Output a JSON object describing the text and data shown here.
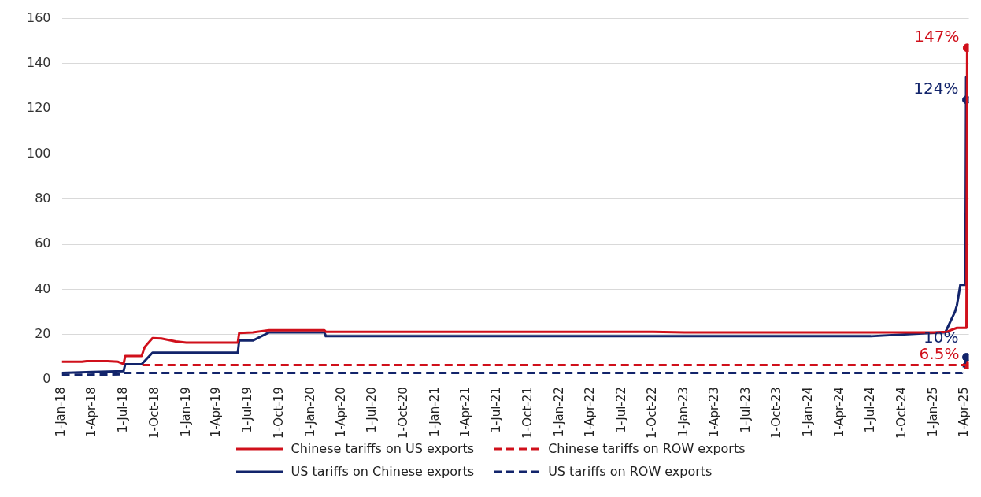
{
  "chart_data": {
    "type": "line",
    "legend": "bottom",
    "grid": "y",
    "ylim": [
      0,
      160
    ],
    "yticks": [
      0,
      20,
      40,
      60,
      80,
      100,
      120,
      140,
      160
    ],
    "xlim": [
      "2018-01-01",
      "2025-04-14"
    ],
    "xticks": [
      {
        "value": "2018-01-01",
        "label": "1-Jan-18"
      },
      {
        "value": "2018-04-01",
        "label": "1-Apr-18"
      },
      {
        "value": "2018-07-01",
        "label": "1-Jul-18"
      },
      {
        "value": "2018-10-01",
        "label": "1-Oct-18"
      },
      {
        "value": "2019-01-01",
        "label": "1-Jan-19"
      },
      {
        "value": "2019-04-01",
        "label": "1-Apr-19"
      },
      {
        "value": "2019-07-01",
        "label": "1-Jul-19"
      },
      {
        "value": "2019-10-01",
        "label": "1-Oct-19"
      },
      {
        "value": "2020-01-01",
        "label": "1-Jan-20"
      },
      {
        "value": "2020-04-01",
        "label": "1-Apr-20"
      },
      {
        "value": "2020-07-01",
        "label": "1-Jul-20"
      },
      {
        "value": "2020-10-01",
        "label": "1-Oct-20"
      },
      {
        "value": "2021-01-01",
        "label": "1-Jan-21"
      },
      {
        "value": "2021-04-01",
        "label": "1-Apr-21"
      },
      {
        "value": "2021-07-01",
        "label": "1-Jul-21"
      },
      {
        "value": "2021-10-01",
        "label": "1-Oct-21"
      },
      {
        "value": "2022-01-01",
        "label": "1-Jan-22"
      },
      {
        "value": "2022-04-01",
        "label": "1-Apr-22"
      },
      {
        "value": "2022-07-01",
        "label": "1-Jul-22"
      },
      {
        "value": "2022-10-01",
        "label": "1-Oct-22"
      },
      {
        "value": "2023-01-01",
        "label": "1-Jan-23"
      },
      {
        "value": "2023-04-01",
        "label": "1-Apr-23"
      },
      {
        "value": "2023-07-01",
        "label": "1-Jul-23"
      },
      {
        "value": "2023-10-01",
        "label": "1-Oct-23"
      },
      {
        "value": "2024-01-01",
        "label": "1-Jan-24"
      },
      {
        "value": "2024-04-01",
        "label": "1-Apr-24"
      },
      {
        "value": "2024-07-01",
        "label": "1-Jul-24"
      },
      {
        "value": "2024-10-01",
        "label": "1-Oct-24"
      },
      {
        "value": "2025-01-01",
        "label": "1-Jan-25"
      },
      {
        "value": "2025-04-01",
        "label": "1-Apr-25"
      }
    ],
    "series": [
      {
        "name": "Chinese tariffs on US exports",
        "color": "#d0101b",
        "line_style": "solid",
        "x": [
          "2018-01-01",
          "2018-03-01",
          "2018-03-15",
          "2018-05-15",
          "2018-06-15",
          "2018-07-01",
          "2018-07-06",
          "2018-08-23",
          "2018-09-01",
          "2018-09-24",
          "2018-10-20",
          "2018-12-01",
          "2019-01-01",
          "2019-06-01",
          "2019-06-05",
          "2019-07-15",
          "2019-09-01",
          "2020-02-10",
          "2020-02-14",
          "2022-10-01",
          "2023-01-01",
          "2025-01-01",
          "2025-02-10",
          "2025-02-20",
          "2025-03-10",
          "2025-04-07",
          "2025-04-09"
        ],
        "values": [
          8,
          8,
          8.3,
          8.3,
          8,
          7,
          10.5,
          10.5,
          14.5,
          18.5,
          18.3,
          17,
          16.5,
          16.5,
          20.7,
          21,
          22,
          22,
          21.3,
          21.3,
          21,
          21,
          21.3,
          22,
          23,
          23,
          147
        ]
      },
      {
        "name": "Chinese tariffs on ROW exports",
        "color": "#d0101b",
        "line_style": "dashed",
        "x": [
          "2018-08-25",
          "2025-04-09"
        ],
        "values": [
          6.5,
          6.5
        ]
      },
      {
        "name": "US tariffs on Chinese exports",
        "color": "#12246b",
        "line_style": "solid",
        "x": [
          "2018-01-01",
          "2018-04-01",
          "2018-07-01",
          "2018-07-06",
          "2018-08-23",
          "2018-09-24",
          "2019-06-01",
          "2019-06-05",
          "2019-07-15",
          "2019-09-01",
          "2020-02-10",
          "2020-02-14",
          "2024-07-01",
          "2025-01-01",
          "2025-02-04",
          "2025-03-04",
          "2025-03-10",
          "2025-03-20",
          "2025-04-04",
          "2025-04-06",
          "2025-04-07"
        ],
        "values": [
          3,
          3.5,
          3.8,
          6.9,
          6.9,
          12,
          12,
          17.4,
          17.4,
          21,
          21,
          19.3,
          19.3,
          20.8,
          21,
          30,
          33,
          42,
          42,
          134,
          124
        ]
      },
      {
        "name": "US tariffs on ROW exports",
        "color": "#12246b",
        "line_style": "dashed",
        "x": [
          "2018-01-01",
          "2018-06-30",
          "2018-07-01",
          "2025-03-25",
          "2025-04-07"
        ],
        "values": [
          2.2,
          2.4,
          3,
          3,
          10
        ]
      },
      {
        "type": "scatter",
        "color": "#d0101b",
        "marker": "circle",
        "x": [
          "2025-04-09",
          "2025-04-09"
        ],
        "values": [
          147,
          6.5
        ],
        "value_labels": [
          "147%",
          "6.5%"
        ]
      },
      {
        "type": "scatter",
        "color": "#12246b",
        "marker": "circle",
        "x": [
          "2025-04-07",
          "2025-04-07"
        ],
        "values": [
          124,
          10
        ],
        "value_labels": [
          "124%",
          "10%"
        ]
      }
    ]
  }
}
